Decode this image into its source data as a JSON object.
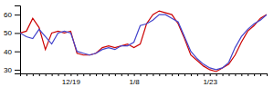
{
  "chart_data": {
    "type": "line",
    "categories": [
      null,
      null,
      null,
      null,
      null,
      null,
      null,
      null,
      "12/19",
      null,
      null,
      null,
      null,
      null,
      null,
      null,
      null,
      null,
      "1/8",
      null,
      null,
      null,
      null,
      null,
      null,
      null,
      null,
      null,
      null,
      null,
      "1/23",
      null,
      null,
      null,
      null,
      null,
      null,
      null,
      null,
      null
    ],
    "series": [
      {
        "color": "#cc0000",
        "values": [
          50,
          51,
          58,
          53,
          41,
          50,
          51,
          50,
          51,
          39,
          38,
          38,
          39,
          42,
          43,
          42,
          43,
          44,
          42,
          44,
          55,
          60,
          62,
          61,
          60,
          55,
          47,
          38,
          35,
          32,
          30,
          29,
          31,
          33,
          38,
          45,
          51,
          54,
          58,
          60
        ]
      },
      {
        "color": "#4444cc",
        "values": [
          50,
          48,
          47,
          52,
          48,
          44,
          50,
          51,
          50,
          40,
          39,
          38,
          39,
          41,
          42,
          41,
          43,
          43,
          45,
          54,
          55,
          57,
          60,
          60,
          58,
          56,
          48,
          40,
          36,
          33,
          31,
          30,
          31,
          34,
          42,
          48,
          52,
          55,
          57,
          60
        ]
      }
    ],
    "ylim": [
      28,
      65
    ],
    "yticks": [
      30,
      40,
      50,
      60
    ]
  }
}
